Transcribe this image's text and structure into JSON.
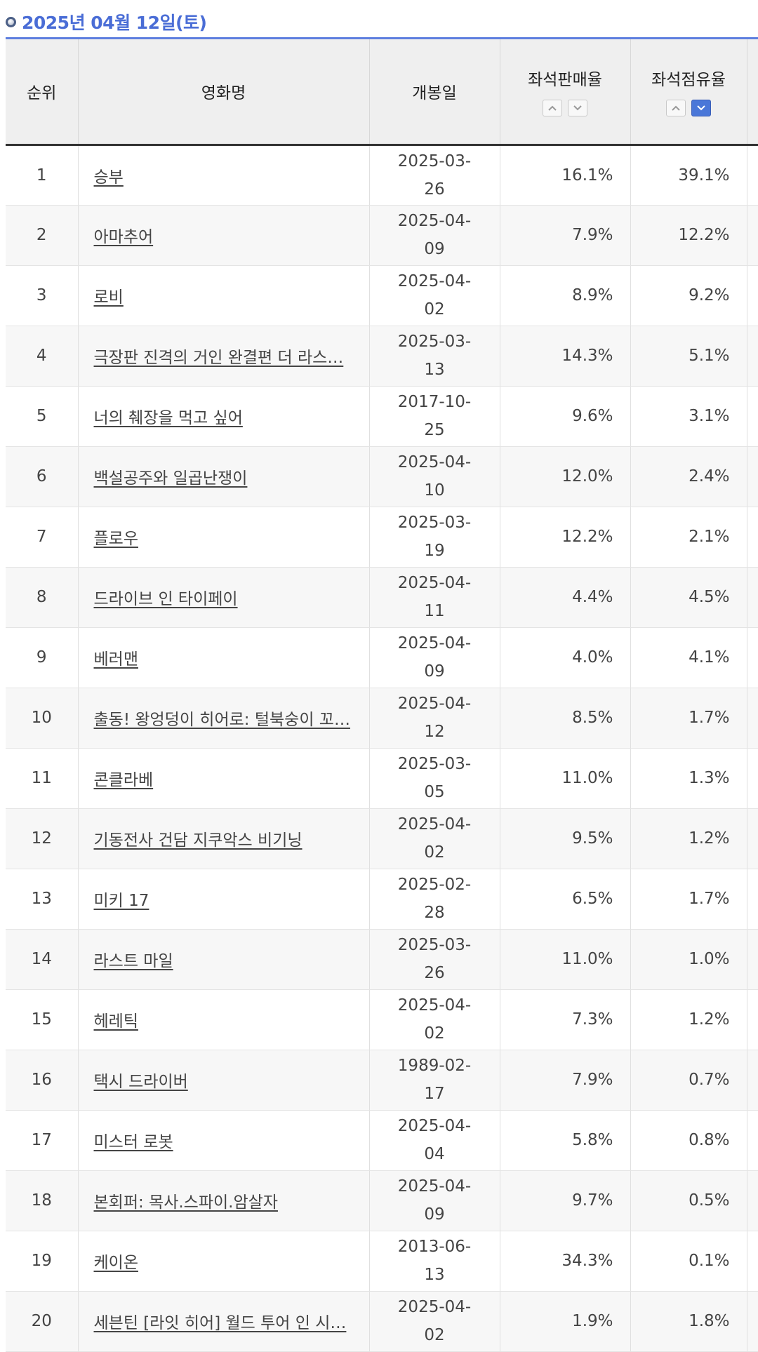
{
  "header": {
    "date_label": "2025년 04월 12일(토)"
  },
  "table": {
    "columns": {
      "rank": "순위",
      "title": "영화명",
      "release": "개봉일",
      "seat_sales": "좌석판매율",
      "seat_share": "좌석점유율"
    },
    "sort": {
      "active_column": "seat_share",
      "active_direction": "descending"
    },
    "rows": [
      {
        "rank": "1",
        "title": "승부",
        "release": "2025-03-26",
        "seat_sales": "16.1%",
        "seat_share": "39.1%"
      },
      {
        "rank": "2",
        "title": "아마추어",
        "release": "2025-04-09",
        "seat_sales": "7.9%",
        "seat_share": "12.2%"
      },
      {
        "rank": "3",
        "title": "로비",
        "release": "2025-04-02",
        "seat_sales": "8.9%",
        "seat_share": "9.2%"
      },
      {
        "rank": "4",
        "title": "극장판 진격의 거인 완결편 더 라스…",
        "release": "2025-03-13",
        "seat_sales": "14.3%",
        "seat_share": "5.1%"
      },
      {
        "rank": "5",
        "title": "너의 췌장을 먹고 싶어",
        "release": "2017-10-25",
        "seat_sales": "9.6%",
        "seat_share": "3.1%"
      },
      {
        "rank": "6",
        "title": "백설공주와 일곱난쟁이",
        "release": "2025-04-10",
        "seat_sales": "12.0%",
        "seat_share": "2.4%"
      },
      {
        "rank": "7",
        "title": "플로우",
        "release": "2025-03-19",
        "seat_sales": "12.2%",
        "seat_share": "2.1%"
      },
      {
        "rank": "8",
        "title": "드라이브 인 타이페이",
        "release": "2025-04-11",
        "seat_sales": "4.4%",
        "seat_share": "4.5%"
      },
      {
        "rank": "9",
        "title": "베러맨",
        "release": "2025-04-09",
        "seat_sales": "4.0%",
        "seat_share": "4.1%"
      },
      {
        "rank": "10",
        "title": "출동! 왕엉덩이 히어로: 털북숭이 꼬…",
        "release": "2025-04-12",
        "seat_sales": "8.5%",
        "seat_share": "1.7%"
      },
      {
        "rank": "11",
        "title": "콘클라베",
        "release": "2025-03-05",
        "seat_sales": "11.0%",
        "seat_share": "1.3%"
      },
      {
        "rank": "12",
        "title": "기동전사 건담 지쿠악스 비기닝",
        "release": "2025-04-02",
        "seat_sales": "9.5%",
        "seat_share": "1.2%"
      },
      {
        "rank": "13",
        "title": "미키 17",
        "release": "2025-02-28",
        "seat_sales": "6.5%",
        "seat_share": "1.7%"
      },
      {
        "rank": "14",
        "title": "라스트 마일",
        "release": "2025-03-26",
        "seat_sales": "11.0%",
        "seat_share": "1.0%"
      },
      {
        "rank": "15",
        "title": "헤레틱",
        "release": "2025-04-02",
        "seat_sales": "7.3%",
        "seat_share": "1.2%"
      },
      {
        "rank": "16",
        "title": "택시 드라이버",
        "release": "1989-02-17",
        "seat_sales": "7.9%",
        "seat_share": "0.7%"
      },
      {
        "rank": "17",
        "title": "미스터 로봇",
        "release": "2025-04-04",
        "seat_sales": "5.8%",
        "seat_share": "0.8%"
      },
      {
        "rank": "18",
        "title": "본회퍼: 목사.스파이.암살자",
        "release": "2025-04-09",
        "seat_sales": "9.7%",
        "seat_share": "0.5%"
      },
      {
        "rank": "19",
        "title": "케이온",
        "release": "2013-06-13",
        "seat_sales": "34.3%",
        "seat_share": "0.1%"
      },
      {
        "rank": "20",
        "title": "세븐틴 [라잇 히어] 월드 투어 인 시…",
        "release": "2025-04-02",
        "seat_sales": "1.9%",
        "seat_share": "1.8%"
      }
    ]
  }
}
